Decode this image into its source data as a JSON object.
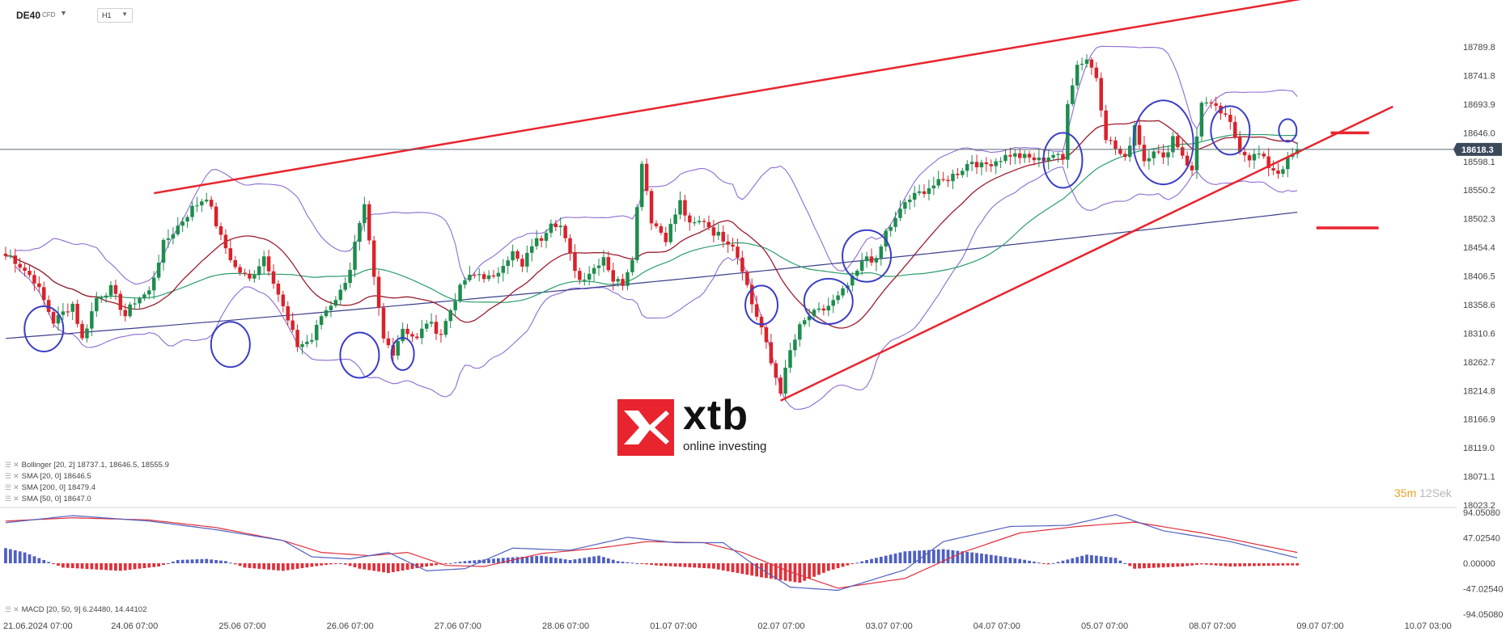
{
  "header": {
    "symbol": "DE40",
    "symbol_type": "CFD",
    "timeframe": "H1",
    "caret_icon": "chevron-down-icon"
  },
  "indicators": [
    {
      "label": "Bollinger  [20, 2] 18737.1,  18646.5,  18555.9"
    },
    {
      "label": "SMA  [20, 0] 18646.5"
    },
    {
      "label": "SMA  [200, 0] 18479.4"
    },
    {
      "label": "SMA  [50, 0] 18647.0"
    }
  ],
  "macd_legend": "MACD  [20, 50, 9] 6.24480,  14.44102",
  "timer": {
    "minutes": "35",
    "m_unit": "m",
    "seconds": "12",
    "s_unit": "Sek"
  },
  "logo": {
    "name": "xtb",
    "tagline": "online investing"
  },
  "colors": {
    "up": "#1e8c4e",
    "down": "#d9222a",
    "bollinger": "#8c6cd2",
    "sma20": "#9b1c2e",
    "sma50": "#2a9c6a",
    "sma200": "#3a3d8c",
    "trend": "#e8242e",
    "circle": "#3a3dc4",
    "macd_line": "#5060c0",
    "signal_line": "#e0303a",
    "price_tag": "#3b4a5a"
  },
  "chart_data": {
    "type": "candlestick",
    "price_axis": {
      "ticks": [
        "18789.8",
        "18741.8",
        "18693.9",
        "18646.0",
        "18598.1",
        "18550.2",
        "18502.3",
        "18454.4",
        "18406.5",
        "18358.6",
        "18310.6",
        "18262.7",
        "18214.8",
        "18166.9",
        "18119.0",
        "18071.1",
        "18023.2"
      ],
      "range": [
        18023.2,
        18789.8
      ]
    },
    "current_price": "18618.3",
    "time_axis": [
      "21.06.2024  07:00",
      "24.06  07:00",
      "25.06  07:00",
      "26.06  07:00",
      "27.06  07:00",
      "28.06  07:00",
      "01.07  07:00",
      "02.07  07:00",
      "03.07  07:00",
      "04.07  07:00",
      "05.07  07:00",
      "08.07  07:00",
      "09.07  07:00",
      "10.07  03:00"
    ],
    "macd_axis": {
      "ticks": [
        "94.05080",
        "47.02540",
        "0.00000",
        "-47.02540",
        "-94.05080"
      ],
      "range": [
        -94.0508,
        94.0508
      ]
    },
    "close_path": [
      [
        1,
        18440
      ],
      [
        6,
        18400
      ],
      [
        10,
        18330
      ],
      [
        14,
        18360
      ],
      [
        16,
        18300
      ],
      [
        19,
        18370
      ],
      [
        22,
        18385
      ],
      [
        25,
        18340
      ],
      [
        27,
        18365
      ],
      [
        30,
        18380
      ],
      [
        33,
        18460
      ],
      [
        36,
        18490
      ],
      [
        39,
        18520
      ],
      [
        42,
        18540
      ],
      [
        45,
        18470
      ],
      [
        48,
        18420
      ],
      [
        51,
        18400
      ],
      [
        54,
        18440
      ],
      [
        56,
        18400
      ],
      [
        59,
        18330
      ],
      [
        61,
        18290
      ],
      [
        64,
        18300
      ],
      [
        66,
        18340
      ],
      [
        68,
        18360
      ],
      [
        70,
        18380
      ],
      [
        72,
        18420
      ],
      [
        73,
        18460
      ],
      [
        75,
        18520
      ],
      [
        77,
        18400
      ],
      [
        79,
        18300
      ],
      [
        81,
        18280
      ],
      [
        83,
        18320
      ],
      [
        86,
        18300
      ],
      [
        88,
        18330
      ],
      [
        91,
        18310
      ],
      [
        94,
        18370
      ],
      [
        96,
        18400
      ],
      [
        99,
        18410
      ],
      [
        102,
        18400
      ],
      [
        104,
        18430
      ],
      [
        106,
        18445
      ],
      [
        108,
        18420
      ],
      [
        110,
        18460
      ],
      [
        112,
        18470
      ],
      [
        114,
        18500
      ],
      [
        116,
        18490
      ],
      [
        118,
        18440
      ],
      [
        120,
        18400
      ],
      [
        123,
        18420
      ],
      [
        125,
        18440
      ],
      [
        127,
        18400
      ],
      [
        129,
        18395
      ],
      [
        131,
        18440
      ],
      [
        133,
        18600
      ],
      [
        135,
        18500
      ],
      [
        138,
        18470
      ],
      [
        141,
        18530
      ],
      [
        143,
        18490
      ],
      [
        146,
        18500
      ],
      [
        148,
        18480
      ],
      [
        150,
        18470
      ],
      [
        152,
        18460
      ],
      [
        154,
        18420
      ],
      [
        156,
        18360
      ],
      [
        158,
        18320
      ],
      [
        160,
        18260
      ],
      [
        162,
        18215
      ],
      [
        164,
        18280
      ],
      [
        166,
        18320
      ],
      [
        168,
        18340
      ],
      [
        171,
        18350
      ],
      [
        174,
        18370
      ],
      [
        177,
        18400
      ],
      [
        180,
        18440
      ],
      [
        182,
        18430
      ],
      [
        184,
        18480
      ],
      [
        186,
        18500
      ],
      [
        188,
        18530
      ],
      [
        190,
        18540
      ],
      [
        193,
        18555
      ],
      [
        196,
        18565
      ],
      [
        199,
        18580
      ],
      [
        202,
        18600
      ],
      [
        204,
        18590
      ],
      [
        207,
        18600
      ],
      [
        210,
        18610
      ],
      [
        213,
        18605
      ],
      [
        216,
        18600
      ],
      [
        219,
        18610
      ],
      [
        221,
        18600
      ],
      [
        222,
        18700
      ],
      [
        224,
        18760
      ],
      [
        226,
        18770
      ],
      [
        228,
        18740
      ],
      [
        230,
        18640
      ],
      [
        232,
        18620
      ],
      [
        234,
        18600
      ],
      [
        236,
        18660
      ],
      [
        238,
        18600
      ],
      [
        240,
        18620
      ],
      [
        242,
        18600
      ],
      [
        244,
        18640
      ],
      [
        246,
        18610
      ],
      [
        248,
        18580
      ],
      [
        250,
        18700
      ],
      [
        252,
        18690
      ],
      [
        254,
        18680
      ],
      [
        256,
        18660
      ],
      [
        258,
        18620
      ],
      [
        260,
        18605
      ],
      [
        262,
        18610
      ],
      [
        264,
        18590
      ],
      [
        266,
        18580
      ],
      [
        268,
        18600
      ],
      [
        270,
        18618
      ]
    ],
    "macd_histogram_shape": [
      [
        0,
        28
      ],
      [
        4,
        20
      ],
      [
        8,
        6
      ],
      [
        12,
        -8
      ],
      [
        24,
        -14
      ],
      [
        32,
        -6
      ],
      [
        36,
        6
      ],
      [
        42,
        8
      ],
      [
        46,
        4
      ],
      [
        50,
        -8
      ],
      [
        58,
        -14
      ],
      [
        66,
        -4
      ],
      [
        70,
        0
      ],
      [
        74,
        -10
      ],
      [
        80,
        -18
      ],
      [
        88,
        -6
      ],
      [
        96,
        4
      ],
      [
        104,
        10
      ],
      [
        112,
        14
      ],
      [
        118,
        6
      ],
      [
        124,
        14
      ],
      [
        128,
        4
      ],
      [
        136,
        -4
      ],
      [
        148,
        -10
      ],
      [
        158,
        -26
      ],
      [
        166,
        -36
      ],
      [
        172,
        -14
      ],
      [
        180,
        6
      ],
      [
        188,
        22
      ],
      [
        196,
        26
      ],
      [
        204,
        18
      ],
      [
        212,
        8
      ],
      [
        218,
        -2
      ],
      [
        226,
        16
      ],
      [
        232,
        10
      ],
      [
        236,
        -10
      ],
      [
        246,
        -6
      ],
      [
        250,
        -2
      ],
      [
        256,
        -6
      ],
      [
        268,
        -4
      ]
    ],
    "macd_line_shape": [
      [
        0,
        75
      ],
      [
        14,
        88
      ],
      [
        30,
        78
      ],
      [
        44,
        62
      ],
      [
        58,
        42
      ],
      [
        64,
        12
      ],
      [
        72,
        8
      ],
      [
        80,
        20
      ],
      [
        88,
        -14
      ],
      [
        96,
        -10
      ],
      [
        106,
        28
      ],
      [
        118,
        24
      ],
      [
        130,
        48
      ],
      [
        140,
        38
      ],
      [
        150,
        38
      ],
      [
        156,
        0
      ],
      [
        164,
        -44
      ],
      [
        174,
        -50
      ],
      [
        188,
        -12
      ],
      [
        196,
        40
      ],
      [
        210,
        68
      ],
      [
        222,
        70
      ],
      [
        232,
        90
      ],
      [
        242,
        60
      ],
      [
        256,
        40
      ],
      [
        270,
        10
      ]
    ],
    "signal_line_shape": [
      [
        0,
        78
      ],
      [
        14,
        84
      ],
      [
        30,
        80
      ],
      [
        44,
        66
      ],
      [
        58,
        42
      ],
      [
        66,
        20
      ],
      [
        76,
        14
      ],
      [
        84,
        20
      ],
      [
        92,
        -4
      ],
      [
        100,
        -6
      ],
      [
        112,
        18
      ],
      [
        124,
        28
      ],
      [
        134,
        40
      ],
      [
        146,
        38
      ],
      [
        154,
        20
      ],
      [
        164,
        -16
      ],
      [
        174,
        -46
      ],
      [
        188,
        -28
      ],
      [
        200,
        20
      ],
      [
        212,
        56
      ],
      [
        224,
        68
      ],
      [
        236,
        76
      ],
      [
        250,
        56
      ],
      [
        262,
        34
      ],
      [
        270,
        20
      ]
    ]
  }
}
